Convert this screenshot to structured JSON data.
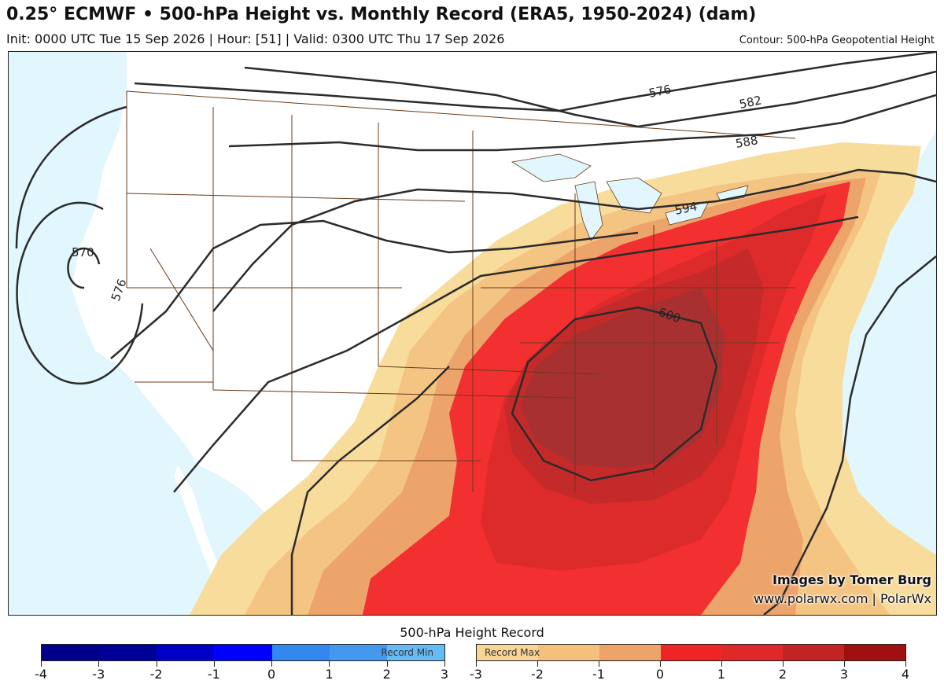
{
  "header": {
    "title": "0.25° ECMWF • 500-hPa Height vs. Monthly Record (ERA5, 1950-2024) (dam)",
    "subtitle": "Init: 0000 UTC Tue 15 Sep 2026 | Hour: [51] | Valid: 0300 UTC Thu 17 Sep 2026",
    "contour_note": "Contour: 500-hPa Geopotential Height"
  },
  "map": {
    "contour_labels": [
      "576",
      "582",
      "588",
      "594",
      "600",
      "570",
      "576"
    ],
    "credit_line1": "Images by Tomer Burg",
    "credit_line2": "www.polarwx.com | PolarWx"
  },
  "colorbar": {
    "title": "500-hPa Height Record",
    "min_label": "Record Min",
    "max_label": "Record Max",
    "min_ticks": [
      "-4",
      "-3",
      "-2",
      "-1",
      "0",
      "1",
      "2",
      "3"
    ],
    "max_ticks": [
      "-3",
      "-2",
      "-1",
      "0",
      "1",
      "2",
      "3",
      "4"
    ],
    "min_colors": [
      "#00008b",
      "#000099",
      "#0000c8",
      "#0000ff",
      "#3388ee",
      "#4499ee",
      "#66bbf5"
    ],
    "max_colors": [
      "#f8d597",
      "#f5c07c",
      "#eea36a",
      "#f02424",
      "#e02828",
      "#c22424",
      "#a01010"
    ]
  }
}
